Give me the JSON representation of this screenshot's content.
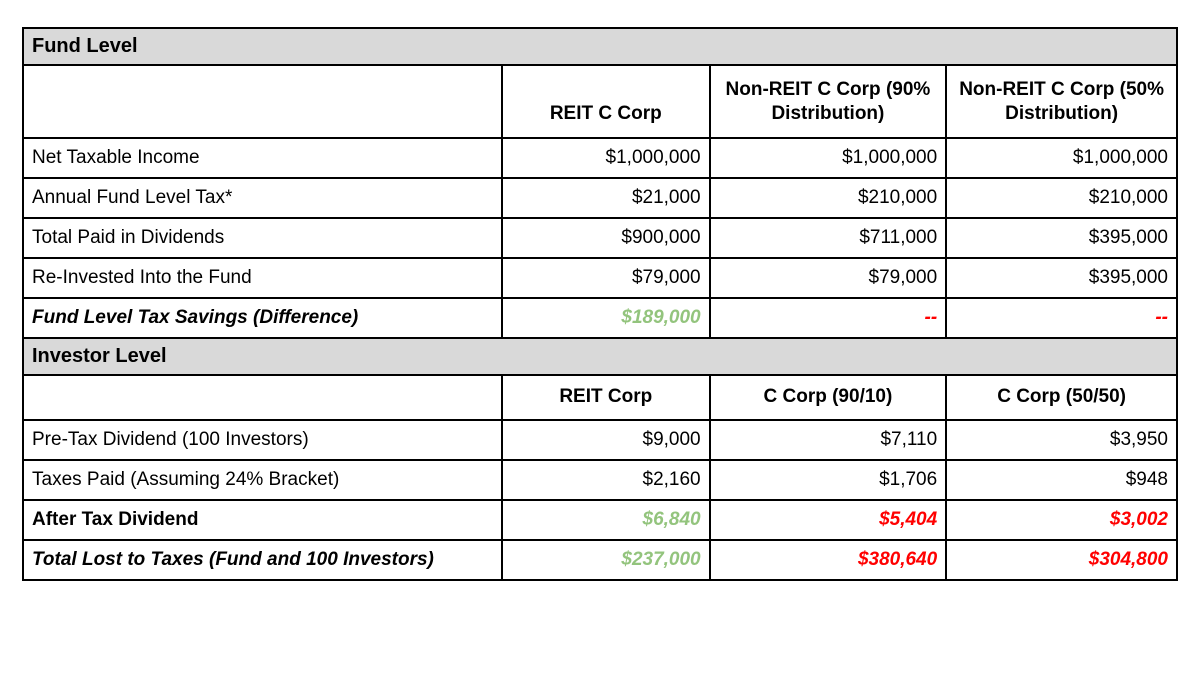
{
  "colors": {
    "positive": "#93c47d",
    "negative": "#ff0000",
    "section_background": "#d9d9d9",
    "border": "#000000",
    "text": "#000000"
  },
  "chart_data": {
    "type": "table",
    "sections": [
      {
        "name": "Fund Level",
        "columns": [
          "",
          "REIT C Corp",
          "Non-REIT C Corp (90% Distribution)",
          "Non-REIT C Corp (50% Distribution)"
        ],
        "rows": [
          {
            "label": "Net Taxable Income",
            "values": [
              "$1,000,000",
              "$1,000,000",
              "$1,000,000"
            ]
          },
          {
            "label": "Annual Fund Level Tax*",
            "values": [
              "$21,000",
              "$210,000",
              "$210,000"
            ]
          },
          {
            "label": "Total Paid in Dividends",
            "values": [
              "$900,000",
              "$711,000",
              "$395,000"
            ]
          },
          {
            "label": "Re-Invested Into the Fund",
            "values": [
              "$79,000",
              "$79,000",
              "$395,000"
            ]
          },
          {
            "label": "Fund Level Tax Savings (Difference)",
            "values": [
              "$189,000",
              "--",
              "--"
            ],
            "emphasis": "positive-vs-none"
          }
        ]
      },
      {
        "name": "Investor Level",
        "columns": [
          "",
          "REIT Corp",
          "C Corp (90/10)",
          "C Corp (50/50)"
        ],
        "rows": [
          {
            "label": "Pre-Tax Dividend (100 Investors)",
            "values": [
              "$9,000",
              "$7,110",
              "$3,950"
            ]
          },
          {
            "label": "Taxes Paid (Assuming 24% Bracket)",
            "values": [
              "$2,160",
              "$1,706",
              "$948"
            ]
          },
          {
            "label": "After Tax Dividend",
            "values": [
              "$6,840",
              "$5,404",
              "$3,002"
            ],
            "emphasis": "colored"
          },
          {
            "label": "Total Lost to Taxes (Fund and 100 Investors)",
            "values": [
              "$237,000",
              "$380,640",
              "$304,800"
            ],
            "emphasis": "colored"
          }
        ]
      }
    ]
  }
}
